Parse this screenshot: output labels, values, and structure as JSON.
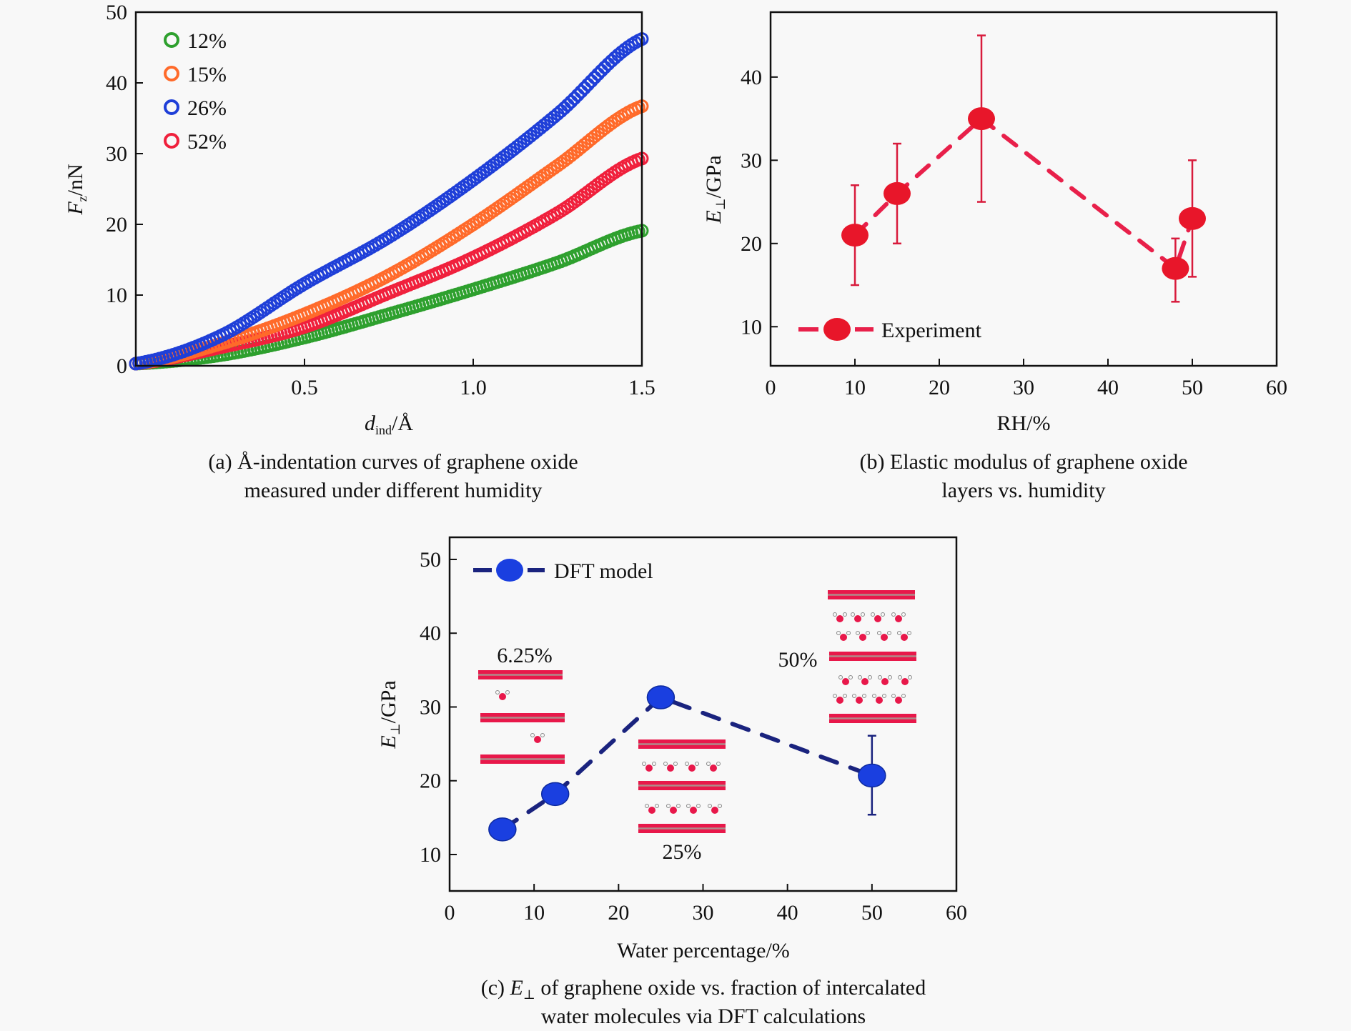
{
  "chart_data": [
    {
      "id": "a",
      "type": "scatter",
      "title": "",
      "caption": [
        "(a) Å-indentation curves of graphene oxide",
        "measured under different humidity"
      ],
      "xlabel": "d_ind/Å",
      "xlabel_main": "d",
      "xlabel_sub": "ind",
      "xlabel_tail": "/Å",
      "ylabel": "F_z/nN",
      "ylabel_main": "F",
      "ylabel_sub": "z",
      "ylabel_tail": "/nN",
      "xlim": [
        0,
        1.5
      ],
      "ylim": [
        0,
        50
      ],
      "xticks": [
        0.5,
        1.0,
        1.5
      ],
      "xtick_labels": [
        "0.5",
        "1.0",
        "1.5"
      ],
      "yticks": [
        0,
        10,
        20,
        30,
        40,
        50
      ],
      "ytick_labels": [
        "0",
        "10",
        "20",
        "30",
        "40",
        "50"
      ],
      "grid": false,
      "legend_position": "top-left",
      "marker": "hollow-circle",
      "x": [
        0.0,
        0.25,
        0.5,
        0.75,
        1.0,
        1.25,
        1.5
      ],
      "series": [
        {
          "name": "12%",
          "color": "#2ea02e",
          "values": [
            0.3,
            1.5,
            4.0,
            7.3,
            10.8,
            14.6,
            19.1
          ]
        },
        {
          "name": "15%",
          "color": "#ff6a2a",
          "values": [
            0.3,
            3.1,
            7.3,
            12.8,
            20.0,
            28.3,
            36.7
          ]
        },
        {
          "name": "26%",
          "color": "#1f3fd8",
          "values": [
            0.3,
            4.2,
            11.6,
            18.2,
            26.3,
            35.6,
            46.2
          ]
        },
        {
          "name": "52%",
          "color": "#f0203c",
          "values": [
            0.3,
            2.6,
            5.5,
            10.3,
            15.3,
            21.6,
            29.3
          ]
        }
      ]
    },
    {
      "id": "b",
      "type": "line",
      "title": "",
      "caption": [
        "(b) Elastic modulus of graphene oxide",
        "layers vs. humidity"
      ],
      "xlabel": "RH/%",
      "ylabel": "E⊥/GPa",
      "ylabel_main": "E",
      "ylabel_sub": "⊥",
      "ylabel_tail": "/GPa",
      "xlim": [
        0,
        60
      ],
      "ylim": [
        5.3,
        47.8
      ],
      "xticks": [
        0,
        10,
        20,
        30,
        40,
        50,
        60
      ],
      "xtick_labels": [
        "0",
        "10",
        "20",
        "30",
        "40",
        "50",
        "60"
      ],
      "yticks": [
        10,
        20,
        30,
        40
      ],
      "ytick_labels": [
        "10",
        "20",
        "30",
        "40"
      ],
      "grid": false,
      "legend_position": "bottom-left",
      "line_style": "dashed",
      "series": [
        {
          "name": "Experiment",
          "color": "#e8162a",
          "line_color": "#e8204a",
          "x": [
            10,
            15,
            25,
            48,
            50
          ],
          "values": [
            21,
            26,
            35,
            17,
            23
          ],
          "err_low": [
            15,
            20,
            25,
            13,
            16
          ],
          "err_high": [
            27,
            32,
            45,
            20.6,
            30
          ]
        }
      ]
    },
    {
      "id": "c",
      "type": "line",
      "title": "",
      "caption": [
        "(c) E⊥ of graphene oxide vs. fraction of intercalated",
        "water molecules via DFT calculations"
      ],
      "caption_prefix": "(c) ",
      "caption_sym": "E",
      "caption_sym_sub": "⊥",
      "caption_rest": " of graphene oxide vs. fraction of intercalated",
      "caption_line2": "water molecules via DFT calculations",
      "xlabel": "Water percentage/%",
      "ylabel": "E⊥/GPa",
      "ylabel_main": "E",
      "ylabel_sub": "⊥",
      "ylabel_tail": "/GPa",
      "xlim": [
        0,
        60
      ],
      "ylim": [
        5.06,
        53.0
      ],
      "xticks": [
        0,
        10,
        20,
        30,
        40,
        50,
        60
      ],
      "xtick_labels": [
        "0",
        "10",
        "20",
        "30",
        "40",
        "50",
        "60"
      ],
      "yticks": [
        10,
        20,
        30,
        40,
        50
      ],
      "ytick_labels": [
        "10",
        "20",
        "30",
        "40",
        "50"
      ],
      "grid": false,
      "legend_position": "top-left",
      "line_style": "dashed",
      "series": [
        {
          "name": "DFT model",
          "color": "#1a3fe0",
          "line_color": "#1a237e",
          "x": [
            6.25,
            12.5,
            25,
            50
          ],
          "values": [
            13.4,
            18.2,
            31.3,
            20.7
          ],
          "err_low": [
            null,
            null,
            null,
            15.4
          ],
          "err_high": [
            null,
            null,
            null,
            26.1
          ]
        }
      ],
      "insets": [
        {
          "label": "6.25%",
          "label_position": "above",
          "layers": 3,
          "water_rows_per_gap": 1,
          "waters_per_row": 1
        },
        {
          "label": "25%",
          "label_position": "below",
          "layers": 3,
          "water_rows_per_gap": 1,
          "waters_per_row": 4
        },
        {
          "label": "50%",
          "label_position": "left",
          "layers": 3,
          "water_rows_per_gap": 2,
          "waters_per_row": 4
        }
      ]
    }
  ]
}
